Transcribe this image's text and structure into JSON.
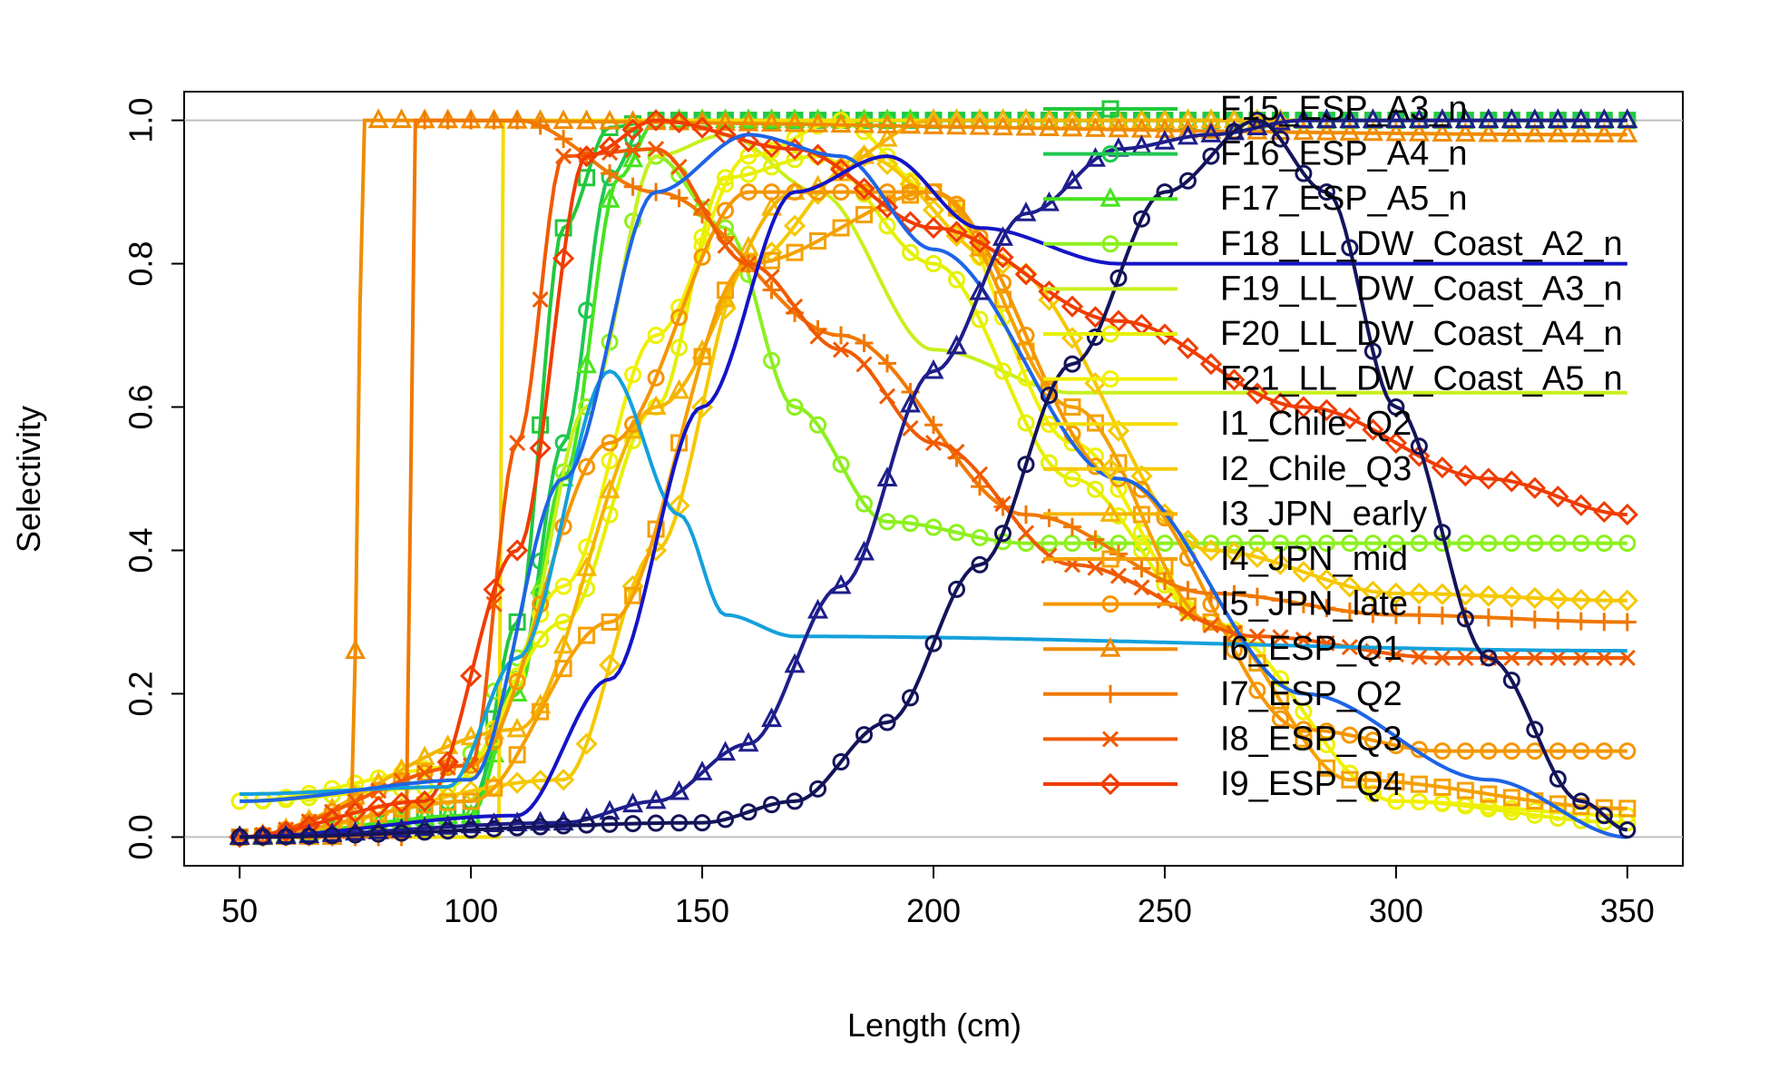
{
  "chart_data": {
    "type": "line",
    "title": "",
    "xlabel": "Length (cm)",
    "ylabel": "Selectivity",
    "xlim": [
      50,
      350
    ],
    "ylim": [
      0,
      1.0
    ],
    "x_ticks": [
      "50",
      "100",
      "150",
      "200",
      "250",
      "300",
      "350"
    ],
    "y_ticks": [
      "0.0",
      "0.2",
      "0.4",
      "0.6",
      "0.8",
      "1.0"
    ],
    "reference_lines_y": [
      0,
      1
    ],
    "grid": false,
    "legend_position": "top-right",
    "series": [
      {
        "name": "F15_ESP_A3_n",
        "color": "#22c83c",
        "marker": "square",
        "points": [
          [
            50,
            0.0
          ],
          [
            100,
            0.03
          ],
          [
            110,
            0.3
          ],
          [
            120,
            0.85
          ],
          [
            130,
            0.99
          ],
          [
            140,
            1.0
          ],
          [
            350,
            1.0
          ]
        ]
      },
      {
        "name": "F16_ESP_A4_n",
        "color": "#1ec850",
        "marker": "circle",
        "points": [
          [
            50,
            0.0
          ],
          [
            100,
            0.05
          ],
          [
            110,
            0.22
          ],
          [
            120,
            0.55
          ],
          [
            130,
            0.92
          ],
          [
            138,
            1.0
          ],
          [
            350,
            1.0
          ]
        ]
      },
      {
        "name": "F17_ESP_A5_n",
        "color": "#46e41e",
        "marker": "triangle",
        "points": [
          [
            50,
            0.0
          ],
          [
            100,
            0.03
          ],
          [
            110,
            0.2
          ],
          [
            120,
            0.5
          ],
          [
            132,
            0.92
          ],
          [
            140,
            1.0
          ],
          [
            350,
            1.0
          ]
        ]
      },
      {
        "name": "F18_LL_DW_Coast_A2_n",
        "color": "#8cf01e",
        "marker": "dot",
        "points": [
          [
            50,
            0.05
          ],
          [
            95,
            0.07
          ],
          [
            110,
            0.25
          ],
          [
            125,
            0.6
          ],
          [
            140,
            0.95
          ],
          [
            155,
            0.85
          ],
          [
            170,
            0.6
          ],
          [
            190,
            0.44
          ],
          [
            220,
            0.41
          ],
          [
            350,
            0.41
          ]
        ]
      },
      {
        "name": "F19_LL_DW_Coast_A3_n",
        "color": "#c8f01e",
        "marker": "none",
        "points": [
          [
            50,
            0.05
          ],
          [
            95,
            0.07
          ],
          [
            110,
            0.25
          ],
          [
            125,
            0.6
          ],
          [
            140,
            0.95
          ],
          [
            155,
            0.98
          ],
          [
            175,
            0.9
          ],
          [
            200,
            0.68
          ],
          [
            230,
            0.62
          ],
          [
            350,
            0.62
          ]
        ]
      },
      {
        "name": "F20_LL_DW_Coast_A4_n",
        "color": "#e6f000",
        "marker": "circle",
        "points": [
          [
            50,
            0.05
          ],
          [
            95,
            0.07
          ],
          [
            120,
            0.3
          ],
          [
            140,
            0.6
          ],
          [
            155,
            0.92
          ],
          [
            175,
            0.95
          ],
          [
            200,
            0.8
          ],
          [
            230,
            0.5
          ],
          [
            260,
            0.3
          ],
          [
            300,
            0.05
          ],
          [
            350,
            0.02
          ]
        ]
      },
      {
        "name": "F21_LL_DW_Coast_A5_n",
        "color": "#f0f000",
        "marker": "circle",
        "points": [
          [
            50,
            0.05
          ],
          [
            100,
            0.1
          ],
          [
            120,
            0.35
          ],
          [
            140,
            0.7
          ],
          [
            160,
            0.95
          ],
          [
            180,
            1.0
          ],
          [
            200,
            0.9
          ],
          [
            230,
            0.55
          ],
          [
            260,
            0.3
          ],
          [
            300,
            0.05
          ],
          [
            350,
            0.03
          ]
        ]
      },
      {
        "name": "I1_Chile_Q2",
        "color": "#f5dc00",
        "marker": "none",
        "points": [
          [
            50,
            0.0
          ],
          [
            106,
            0.0
          ],
          [
            107,
            1.0
          ],
          [
            350,
            1.0
          ]
        ]
      },
      {
        "name": "I2_Chile_Q3",
        "color": "#f5c800",
        "marker": "diamond",
        "points": [
          [
            50,
            0.0
          ],
          [
            120,
            0.08
          ],
          [
            140,
            0.4
          ],
          [
            160,
            0.8
          ],
          [
            185,
            0.95
          ],
          [
            215,
            0.8
          ],
          [
            260,
            0.4
          ],
          [
            300,
            0.34
          ],
          [
            350,
            0.33
          ]
        ]
      },
      {
        "name": "I3_JPN_early",
        "color": "#f5b400",
        "marker": "triangle",
        "points": [
          [
            50,
            0.0
          ],
          [
            110,
            0.15
          ],
          [
            140,
            0.6
          ],
          [
            170,
            0.9
          ],
          [
            200,
            1.0
          ],
          [
            350,
            1.0
          ]
        ]
      },
      {
        "name": "I4_JPN_mid",
        "color": "#f5a000",
        "marker": "square",
        "points": [
          [
            50,
            0.0
          ],
          [
            100,
            0.05
          ],
          [
            130,
            0.3
          ],
          [
            160,
            0.8
          ],
          [
            200,
            0.9
          ],
          [
            230,
            0.6
          ],
          [
            260,
            0.3
          ],
          [
            290,
            0.08
          ],
          [
            350,
            0.04
          ]
        ]
      },
      {
        "name": "I5_JPN_late",
        "color": "#f59600",
        "marker": "circle",
        "points": [
          [
            50,
            0.0
          ],
          [
            100,
            0.1
          ],
          [
            130,
            0.55
          ],
          [
            160,
            0.9
          ],
          [
            200,
            0.9
          ],
          [
            240,
            0.5
          ],
          [
            280,
            0.15
          ],
          [
            310,
            0.12
          ],
          [
            350,
            0.12
          ]
        ]
      },
      {
        "name": "I6_ESP_Q1",
        "color": "#f08c00",
        "marker": "triangle",
        "points": [
          [
            50,
            0.0
          ],
          [
            74,
            0.0
          ],
          [
            77,
            1.0
          ],
          [
            350,
            0.98
          ]
        ]
      },
      {
        "name": "I7_ESP_Q2",
        "color": "#f07800",
        "marker": "plus",
        "points": [
          [
            50,
            0.0
          ],
          [
            86,
            0.0
          ],
          [
            88,
            1.0
          ],
          [
            110,
            1.0
          ],
          [
            140,
            0.9
          ],
          [
            180,
            0.7
          ],
          [
            220,
            0.45
          ],
          [
            260,
            0.34
          ],
          [
            300,
            0.31
          ],
          [
            350,
            0.3
          ]
        ]
      },
      {
        "name": "I8_ESP_Q3",
        "color": "#f05a00",
        "marker": "cross",
        "points": [
          [
            50,
            0.0
          ],
          [
            100,
            0.1
          ],
          [
            110,
            0.55
          ],
          [
            120,
            0.95
          ],
          [
            140,
            0.96
          ],
          [
            160,
            0.8
          ],
          [
            180,
            0.68
          ],
          [
            200,
            0.55
          ],
          [
            230,
            0.38
          ],
          [
            270,
            0.28
          ],
          [
            310,
            0.25
          ],
          [
            350,
            0.25
          ]
        ]
      },
      {
        "name": "I9_ESP_Q4",
        "color": "#f03c00",
        "marker": "diamond",
        "points": [
          [
            50,
            0.0
          ],
          [
            90,
            0.05
          ],
          [
            110,
            0.4
          ],
          [
            125,
            0.95
          ],
          [
            140,
            1.0
          ],
          [
            170,
            0.96
          ],
          [
            200,
            0.85
          ],
          [
            240,
            0.72
          ],
          [
            280,
            0.6
          ],
          [
            320,
            0.5
          ],
          [
            350,
            0.45
          ]
        ]
      },
      {
        "name": "",
        "color": "#14a0dc",
        "marker": "none",
        "points": [
          [
            50,
            0.06
          ],
          [
            95,
            0.07
          ],
          [
            110,
            0.25
          ],
          [
            130,
            0.65
          ],
          [
            145,
            0.45
          ],
          [
            155,
            0.31
          ],
          [
            170,
            0.28
          ],
          [
            350,
            0.26
          ]
        ]
      },
      {
        "name": "",
        "color": "#1e64e6",
        "marker": "none",
        "points": [
          [
            50,
            0.05
          ],
          [
            100,
            0.08
          ],
          [
            120,
            0.5
          ],
          [
            140,
            0.9
          ],
          [
            160,
            0.98
          ],
          [
            180,
            0.95
          ],
          [
            200,
            0.82
          ],
          [
            240,
            0.5
          ],
          [
            280,
            0.2
          ],
          [
            320,
            0.08
          ],
          [
            350,
            0.0
          ]
        ]
      },
      {
        "name": "",
        "color": "#1414c8",
        "marker": "none",
        "points": [
          [
            50,
            0.0
          ],
          [
            110,
            0.03
          ],
          [
            130,
            0.22
          ],
          [
            150,
            0.6
          ],
          [
            170,
            0.9
          ],
          [
            190,
            0.95
          ],
          [
            210,
            0.85
          ],
          [
            240,
            0.8
          ],
          [
            350,
            0.8
          ]
        ]
      },
      {
        "name": "",
        "color": "#1e1e8c",
        "marker": "triangle",
        "points": [
          [
            50,
            0.0
          ],
          [
            120,
            0.02
          ],
          [
            140,
            0.05
          ],
          [
            160,
            0.13
          ],
          [
            180,
            0.35
          ],
          [
            200,
            0.65
          ],
          [
            220,
            0.87
          ],
          [
            240,
            0.96
          ],
          [
            260,
            0.98
          ],
          [
            280,
            1.0
          ],
          [
            350,
            1.0
          ]
        ]
      },
      {
        "name": "",
        "color": "#14145a",
        "marker": "circle",
        "points": [
          [
            50,
            0.0
          ],
          [
            150,
            0.02
          ],
          [
            170,
            0.05
          ],
          [
            190,
            0.16
          ],
          [
            210,
            0.38
          ],
          [
            230,
            0.66
          ],
          [
            250,
            0.9
          ],
          [
            270,
            1.0
          ],
          [
            285,
            0.9
          ],
          [
            300,
            0.6
          ],
          [
            320,
            0.25
          ],
          [
            340,
            0.05
          ],
          [
            350,
            0.01
          ]
        ]
      }
    ]
  }
}
